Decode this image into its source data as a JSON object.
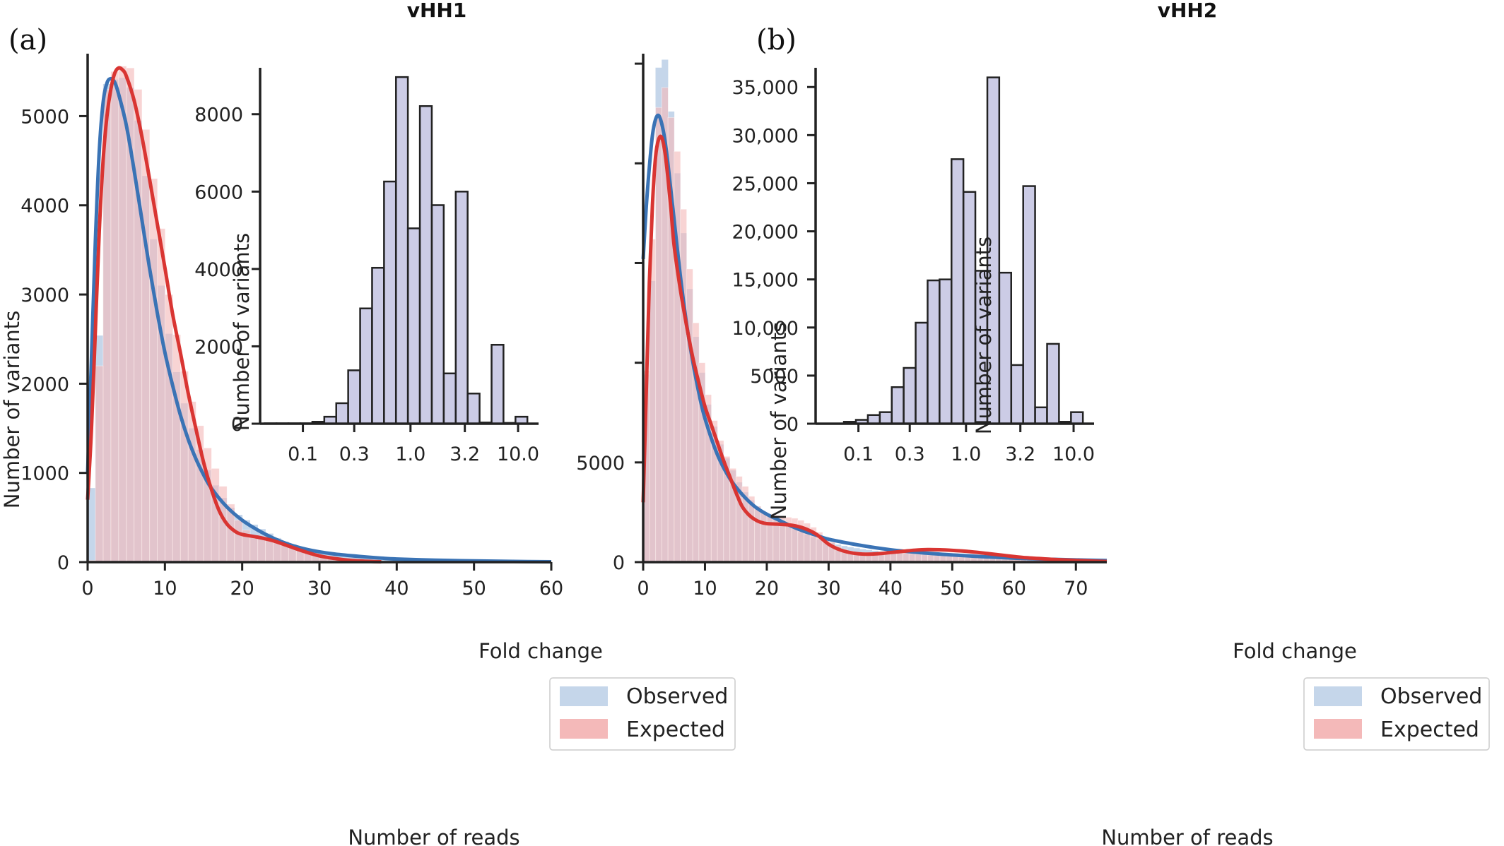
{
  "chart_data": [
    {
      "panel_label": "(a)",
      "title": "vHH1",
      "type": "histogram+kde",
      "xlabel": "Number of reads",
      "ylabel": "Number of variants",
      "xlim": [
        0,
        60
      ],
      "ylim": [
        0,
        5700
      ],
      "xticks": [
        0,
        10,
        20,
        30,
        40,
        50,
        60
      ],
      "yticks": [
        0,
        1000,
        2000,
        3000,
        4000,
        5000
      ],
      "ytick_labels": [
        "0",
        "1000",
        "2000",
        "3000",
        "4000",
        "5000"
      ],
      "legend": {
        "position": "bottom-right",
        "entries": [
          "Observed",
          "Expected"
        ]
      },
      "colors": {
        "observed_bar": "#c5d6ea",
        "expected_bar": "#f4b9b9",
        "observed_line": "#3a73b5",
        "expected_line": "#d93532",
        "overlap": "#cdb4c4"
      },
      "bin_width": 1,
      "observed_bars": [
        830,
        2540,
        5360,
        5410,
        5430,
        5320,
        4950,
        4330,
        3620,
        3100,
        2560,
        2130,
        1780,
        1500,
        1260,
        1030,
        860,
        720,
        610,
        530,
        470,
        420,
        370,
        320,
        270,
        230,
        200,
        170,
        150,
        130,
        110,
        100,
        90,
        80,
        70,
        60,
        55,
        50,
        45,
        40,
        35,
        32,
        30,
        28,
        26,
        24,
        22,
        20,
        18,
        16,
        14,
        12,
        11,
        10,
        9,
        8,
        7,
        6,
        5,
        4
      ],
      "expected_bars": [
        20,
        2200,
        5300,
        5500,
        5560,
        5540,
        5300,
        4850,
        4300,
        3740,
        3000,
        2550,
        2140,
        1800,
        1530,
        1280,
        1050,
        850,
        650,
        470,
        360,
        300,
        280,
        270,
        260,
        230,
        200,
        170,
        130,
        100,
        75,
        55,
        40,
        30,
        22,
        16,
        12,
        9,
        7,
        5,
        4,
        3,
        2,
        2,
        1,
        1,
        1,
        1,
        1,
        0,
        0,
        0,
        0,
        0,
        0,
        0,
        0,
        0,
        0,
        0
      ],
      "observed_kde": {
        "x": [
          0,
          0.5,
          1,
          1.5,
          2,
          2.5,
          3,
          3.5,
          4,
          5,
          6,
          7,
          8,
          9,
          10,
          11,
          12,
          13,
          14,
          15,
          16,
          18,
          20,
          22,
          24,
          26,
          28,
          30,
          32,
          35,
          38,
          40,
          45,
          50,
          55,
          60
        ],
        "y": [
          1000,
          2300,
          3600,
          4600,
          5150,
          5370,
          5420,
          5380,
          5250,
          4900,
          4400,
          3850,
          3300,
          2800,
          2350,
          1980,
          1650,
          1380,
          1160,
          980,
          830,
          620,
          470,
          360,
          270,
          200,
          150,
          115,
          90,
          65,
          45,
          35,
          22,
          14,
          8,
          4
        ]
      },
      "expected_kde": {
        "x": [
          0,
          0.5,
          1,
          1.5,
          2,
          2.5,
          3,
          3.5,
          4,
          4.5,
          5,
          6,
          7,
          8,
          9,
          10,
          11,
          12,
          13,
          14,
          15,
          16,
          17,
          18,
          19,
          20,
          22,
          24,
          26,
          28,
          30,
          32,
          34,
          36,
          38
        ],
        "y": [
          700,
          1500,
          2600,
          3700,
          4500,
          5000,
          5300,
          5480,
          5540,
          5520,
          5450,
          5180,
          4780,
          4300,
          3800,
          3300,
          2780,
          2350,
          1900,
          1500,
          1120,
          820,
          580,
          430,
          350,
          310,
          280,
          240,
          180,
          120,
          70,
          40,
          20,
          10,
          4
        ]
      },
      "inset": {
        "type": "bar",
        "xlabel": "Fold change",
        "ylabel": "Number of variants",
        "xscale": "log",
        "xlim": [
          0.04,
          15.5
        ],
        "ylim": [
          0,
          9200
        ],
        "xticks": [
          0.1,
          0.3,
          1.0,
          3.2,
          10.0
        ],
        "xtick_labels": [
          "0.1",
          "0.3",
          "1.0",
          "3.2",
          "10.0"
        ],
        "yticks": [
          0,
          2000,
          4000,
          6000,
          8000
        ],
        "ytick_labels": [
          "0",
          "2000",
          "4000",
          "6000",
          "8000"
        ],
        "bar_color": "#cccce6",
        "bar_edge": "#222222",
        "bar_centers": [
          0.05,
          0.0645,
          0.0833,
          0.1076,
          0.139,
          0.1795,
          0.2318,
          0.2993,
          0.3866,
          0.4992,
          0.6447,
          0.8326,
          1.0753,
          1.3886,
          1.7933,
          2.316,
          2.991,
          3.862,
          4.988,
          6.441,
          8.318,
          10.742
        ],
        "values": [
          10,
          10,
          10,
          10,
          50,
          180,
          530,
          1380,
          2980,
          4030,
          6260,
          8960,
          5050,
          8210,
          5650,
          1300,
          6000,
          780,
          30,
          2040,
          20,
          180
        ]
      }
    },
    {
      "panel_label": "(b)",
      "title": "vHH2",
      "type": "histogram+kde",
      "xlabel": "Number of reads",
      "ylabel": "Number of variants",
      "xlim": [
        0,
        75
      ],
      "ylim": [
        0,
        25500
      ],
      "xticks": [
        0,
        10,
        20,
        30,
        40,
        50,
        60,
        70
      ],
      "yticks": [
        0,
        5000,
        10000,
        15000,
        20000,
        25000
      ],
      "ytick_labels": [
        "0",
        "5000",
        "",
        "",
        "",
        ""
      ],
      "legend": {
        "position": "bottom-right",
        "entries": [
          "Observed",
          "Expected"
        ]
      },
      "colors": {
        "observed_bar": "#c5d6ea",
        "expected_bar": "#f4b9b9",
        "observed_line": "#3a73b5",
        "expected_line": "#d93532",
        "overlap": "#cdb4c4"
      },
      "bin_width": 1,
      "observed_bars": [
        9400,
        14100,
        24800,
        25200,
        22600,
        19500,
        16500,
        13700,
        11300,
        9500,
        7900,
        6800,
        5900,
        5200,
        4600,
        4000,
        3500,
        3100,
        2800,
        2500,
        2300,
        2100,
        1950,
        1800,
        1650,
        1500,
        1380,
        1260,
        1150,
        1050,
        960,
        880,
        810,
        750,
        700,
        650,
        610,
        570,
        530,
        500,
        470,
        440,
        410,
        390,
        370,
        350,
        330,
        310,
        290,
        270,
        250,
        235,
        220,
        205,
        190,
        175,
        160,
        150,
        140,
        130,
        120,
        110,
        100,
        95,
        90,
        85,
        80,
        75,
        70,
        65,
        60,
        55,
        50,
        45,
        40
      ],
      "expected_bars": [
        9600,
        16200,
        22800,
        23800,
        22300,
        20600,
        17700,
        14700,
        12000,
        10000,
        8400,
        7100,
        6100,
        5300,
        4700,
        4300,
        3800,
        3300,
        2800,
        2500,
        2400,
        2350,
        2300,
        2250,
        2200,
        2100,
        1950,
        1750,
        1500,
        1250,
        1000,
        800,
        650,
        550,
        500,
        480,
        470,
        470,
        480,
        490,
        500,
        510,
        520,
        520,
        510,
        500,
        490,
        480,
        470,
        460,
        450,
        430,
        400,
        360,
        320,
        280,
        240,
        210,
        180,
        160,
        140,
        120,
        100,
        90,
        80,
        70,
        60,
        50,
        45,
        40,
        35,
        30,
        25,
        20,
        15
      ],
      "observed_kde": {
        "x": [
          0,
          0.5,
          1,
          1.5,
          2,
          2.5,
          3,
          3.5,
          4,
          5,
          6,
          7,
          8,
          9,
          10,
          12,
          14,
          16,
          18,
          20,
          22,
          24,
          26,
          28,
          30,
          35,
          40,
          45,
          50,
          55,
          60,
          65,
          70,
          75
        ],
        "y": [
          15200,
          17800,
          19800,
          21400,
          22200,
          22400,
          22000,
          21200,
          20000,
          17200,
          14400,
          12000,
          10100,
          8500,
          7200,
          5400,
          4200,
          3400,
          2800,
          2400,
          2100,
          1800,
          1550,
          1350,
          1150,
          850,
          620,
          470,
          360,
          270,
          200,
          150,
          110,
          80
        ]
      },
      "expected_kde": {
        "x": [
          0,
          0.5,
          1,
          1.5,
          2,
          2.5,
          3,
          3.5,
          4,
          4.5,
          5,
          6,
          7,
          8,
          9,
          10,
          11,
          12,
          13,
          14,
          15,
          16,
          17,
          18,
          19,
          20,
          22,
          24,
          26,
          28,
          30,
          32,
          34,
          36,
          38,
          40,
          42,
          44,
          46,
          48,
          50,
          52,
          54,
          56,
          58,
          60,
          62,
          65,
          68,
          72,
          75
        ],
        "y": [
          3000,
          8500,
          14000,
          17900,
          20300,
          21200,
          21300,
          20600,
          19300,
          17700,
          15900,
          13700,
          11900,
          10300,
          9000,
          7800,
          6900,
          6000,
          5100,
          4300,
          3500,
          2800,
          2400,
          2150,
          2000,
          1930,
          1900,
          1850,
          1700,
          1400,
          900,
          600,
          450,
          400,
          420,
          480,
          540,
          600,
          630,
          620,
          590,
          550,
          490,
          420,
          350,
          280,
          220,
          160,
          110,
          60,
          30
        ]
      },
      "inset": {
        "type": "bar",
        "xlabel": "Fold change",
        "ylabel": "Number of variants",
        "xscale": "log",
        "xlim": [
          0.04,
          15.5
        ],
        "ylim": [
          0,
          37000
        ],
        "xticks": [
          0.1,
          0.3,
          1.0,
          3.2,
          10.0
        ],
        "xtick_labels": [
          "0.1",
          "0.3",
          "1.0",
          "3.2",
          "10.0"
        ],
        "yticks": [
          0,
          5000,
          10000,
          15000,
          20000,
          25000,
          30000,
          35000
        ],
        "ytick_labels": [
          "0",
          "5000",
          "10,000",
          "15,000",
          "20,000",
          "25,000",
          "30,000",
          "35,000"
        ],
        "bar_color": "#cccce6",
        "bar_edge": "#222222",
        "bar_centers": [
          0.0833,
          0.1076,
          0.139,
          0.1795,
          0.2318,
          0.2993,
          0.3866,
          0.4992,
          0.6447,
          0.8326,
          1.0753,
          1.3886,
          1.7933,
          2.316,
          2.991,
          3.862,
          4.988,
          6.441,
          8.318,
          10.742
        ],
        "values": [
          200,
          400,
          900,
          1200,
          3800,
          5800,
          10500,
          14900,
          15000,
          27500,
          24100,
          15900,
          36000,
          15700,
          6100,
          24700,
          1700,
          8300,
          200,
          1200
        ]
      }
    }
  ]
}
